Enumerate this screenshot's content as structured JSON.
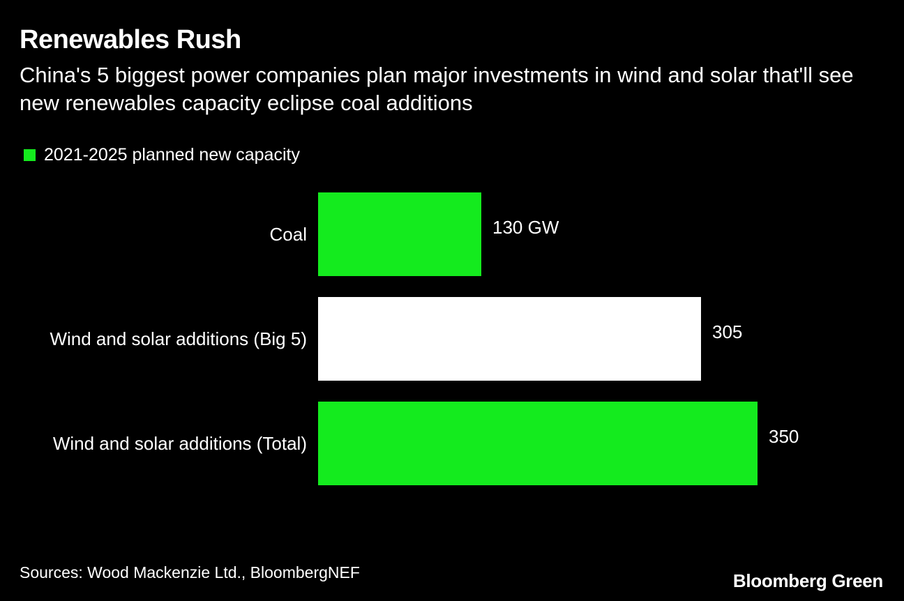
{
  "header": {
    "title": "Renewables Rush",
    "subtitle": "China's 5 biggest power companies plan major investments in wind and solar that'll see new renewables capacity eclipse coal additions"
  },
  "legend": {
    "label": "2021-2025 planned new capacity",
    "color": "#14eb1e"
  },
  "chart_data": {
    "type": "bar",
    "orientation": "horizontal",
    "categories": [
      "Coal",
      "Wind and solar additions (Big 5)",
      "Wind and solar additions (Total)"
    ],
    "values": [
      130,
      305,
      350
    ],
    "value_labels": [
      "130 GW",
      "305",
      "350"
    ],
    "bar_colors": [
      "#14eb1e",
      "#ffffff",
      "#14eb1e"
    ],
    "series": [
      {
        "name": "2021-2025 planned new capacity",
        "values": [
          130,
          305,
          350
        ]
      }
    ],
    "title": "Renewables Rush",
    "xlabel": "",
    "ylabel": "",
    "xlim": [
      0,
      350
    ],
    "grid": false,
    "legend_position": "top-left"
  },
  "footer": {
    "source": "Sources: Wood Mackenzie Ltd., BloombergNEF",
    "brand": "Bloomberg Green"
  }
}
